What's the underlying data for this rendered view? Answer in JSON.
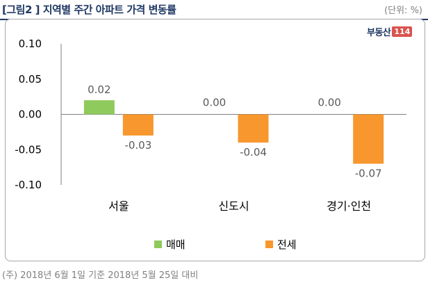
{
  "header": {
    "title": "[그림2 ] 지역별 주간 아파트 가격 변동률",
    "unit": "(단위: %)"
  },
  "logo": {
    "text": "부동산",
    "number": "114"
  },
  "footnote": "(주) 2018년 6월 1일 기준 2018년 5월 25일 대비",
  "colors": {
    "sale": "#8fca5c",
    "jeonse": "#f7972e",
    "axis": "#7f7f7f",
    "label": "#595959"
  },
  "chart_data": {
    "type": "bar",
    "categories": [
      "서울",
      "신도시",
      "경기·인천"
    ],
    "series": [
      {
        "name": "매매",
        "values": [
          0.02,
          0.0,
          0.0
        ],
        "value_labels": [
          "0.02",
          "0.00",
          "0.00"
        ]
      },
      {
        "name": "전세",
        "values": [
          -0.03,
          -0.04,
          -0.07
        ],
        "value_labels": [
          "-0.03",
          "-0.04",
          "-0.07"
        ]
      }
    ],
    "ylim": [
      -0.1,
      0.1
    ],
    "yticks": [
      "0.10",
      "0.05",
      "0.00",
      "-0.05",
      "-0.10"
    ],
    "ytick_values": [
      0.1,
      0.05,
      0.0,
      -0.05,
      -0.1
    ],
    "legend_position": "bottom-center",
    "grid": false
  }
}
